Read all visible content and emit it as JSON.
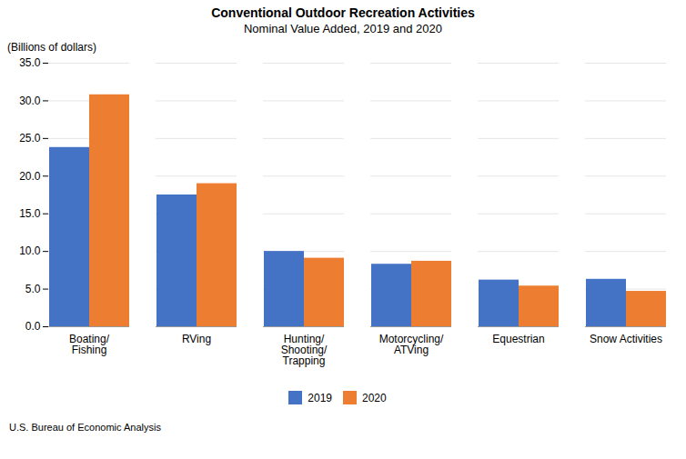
{
  "chart_data": {
    "type": "bar",
    "title": "Conventional Outdoor Recreation Activities",
    "subtitle": "Nominal Value Added, 2019 and 2020",
    "ylabel": "(Billions of dollars)",
    "source": "U.S. Bureau of Economic Analysis",
    "categories": [
      "Boating/\nFishing",
      "RVing",
      "Hunting/\nShooting/\nTrapping",
      "Motorcycling/\nATVing",
      "Equestrian",
      "Snow Activities"
    ],
    "series": [
      {
        "name": "2019",
        "color": "#4472C4",
        "values": [
          23.8,
          17.5,
          10.0,
          8.3,
          6.2,
          6.3
        ]
      },
      {
        "name": "2020",
        "color": "#ED7D31",
        "values": [
          30.8,
          19.0,
          9.1,
          8.7,
          5.4,
          4.7
        ]
      }
    ],
    "ylim": [
      0,
      35.0
    ],
    "yticks": [
      {
        "value": 0,
        "label": "0.0"
      },
      {
        "value": 5,
        "label": "5.0"
      },
      {
        "value": 10,
        "label": "10.0"
      },
      {
        "value": 15,
        "label": "15.0"
      },
      {
        "value": 20,
        "label": "20.0"
      },
      {
        "value": 25,
        "label": "25.0"
      },
      {
        "value": 30,
        "label": "30.0"
      },
      {
        "value": 35,
        "label": "35.0"
      }
    ],
    "grid": true,
    "legend": "bottom"
  }
}
